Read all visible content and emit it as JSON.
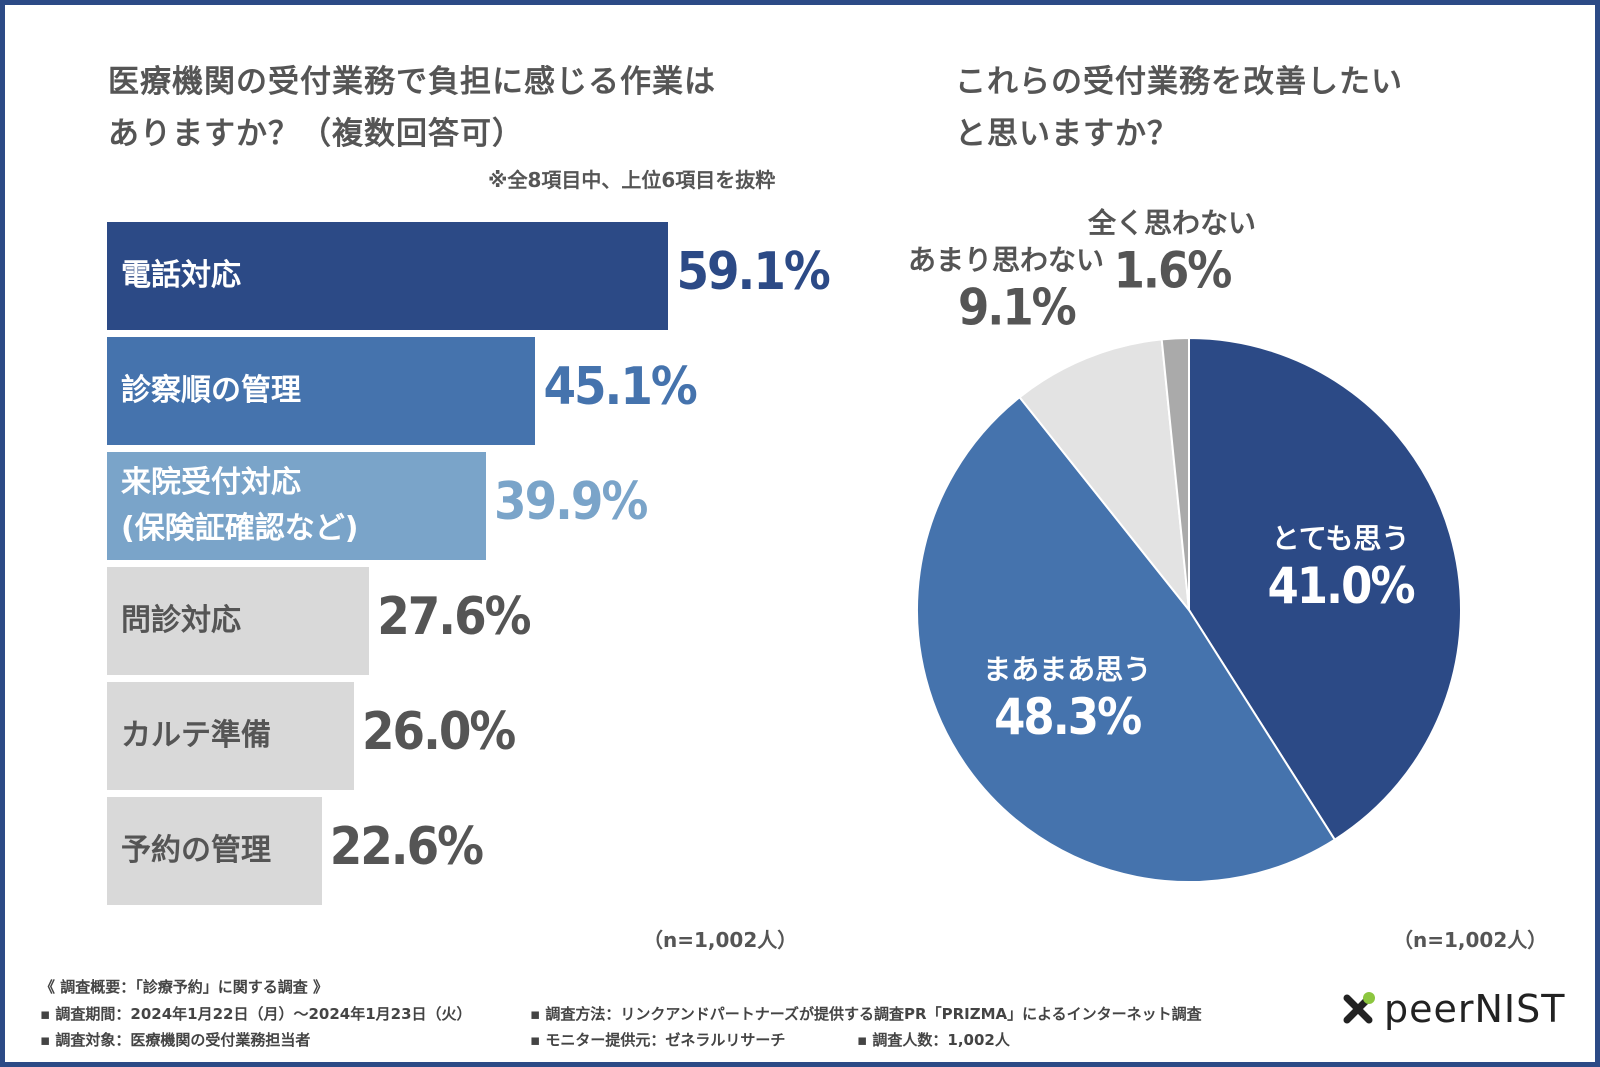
{
  "left_chart": {
    "title_lines": [
      "医療機関の受付業務で負担に感じる作業は",
      "ありますか？（複数回答可）"
    ],
    "note": "※全8項目中、上位6項目を抜粋",
    "n_label": "（n=1,002人）"
  },
  "right_chart": {
    "title_lines": [
      "これらの受付業務を改善したい",
      "と思いますか？"
    ],
    "n_label": "（n=1,002人）"
  },
  "chart_data": [
    {
      "type": "bar",
      "orientation": "horizontal",
      "title": "医療機関の受付業務で負担に感じる作業はありますか？（複数回答可）",
      "categories": [
        "電話対応",
        "診察順の管理",
        "来院受付対応\n(保険証確認など)",
        "問診対応",
        "カルテ準備",
        "予約の管理"
      ],
      "values": [
        59.1,
        45.1,
        39.9,
        27.6,
        26.0,
        22.6
      ],
      "value_labels": [
        "59.1%",
        "45.1%",
        "39.9%",
        "27.6%",
        "26.0%",
        "22.6%"
      ],
      "xlim": [
        0,
        100
      ],
      "unit": "%",
      "colors": [
        "#2c4a86",
        "#4573ad",
        "#7aa4c9",
        "#d9d9d9",
        "#d9d9d9",
        "#d9d9d9"
      ],
      "label_colors": [
        "#ffffff",
        "#ffffff",
        "#ffffff",
        "#555555",
        "#555555",
        "#555555"
      ],
      "value_colors": [
        "#2c4a86",
        "#4573ad",
        "#7aa4c9",
        "#555555",
        "#555555",
        "#555555"
      ]
    },
    {
      "type": "pie",
      "title": "これらの受付業務を改善したいと思いますか？",
      "categories": [
        "とても思う",
        "まあまあ思う",
        "あまり思わない",
        "全く思わない"
      ],
      "values": [
        41.0,
        48.3,
        9.1,
        1.6
      ],
      "value_labels": [
        "41.0%",
        "48.3%",
        "9.1%",
        "1.6%"
      ],
      "colors": [
        "#2c4a86",
        "#4573ad",
        "#e3e3e3",
        "#aaaaaa"
      ],
      "label_colors": [
        "#ffffff",
        "#ffffff",
        "#555555",
        "#555555"
      ]
    }
  ],
  "survey": {
    "heading": "《 調査概要：「診療予約」に関する調査 》",
    "period": "▪ 調査期間：2024年1月22日（月）〜2024年1月23日（火）",
    "method": "▪ 調査方法：リンクアンドパートナーズが提供する調査PR「PRIZMA」によるインターネット調査",
    "target": "▪ 調査対象：医療機関の受付業務担当者",
    "monitor": "▪ モニター提供元：ゼネラルリサーチ",
    "count": "▪ 調査人数：1,002人"
  },
  "logo": {
    "text": "peerNIST"
  }
}
